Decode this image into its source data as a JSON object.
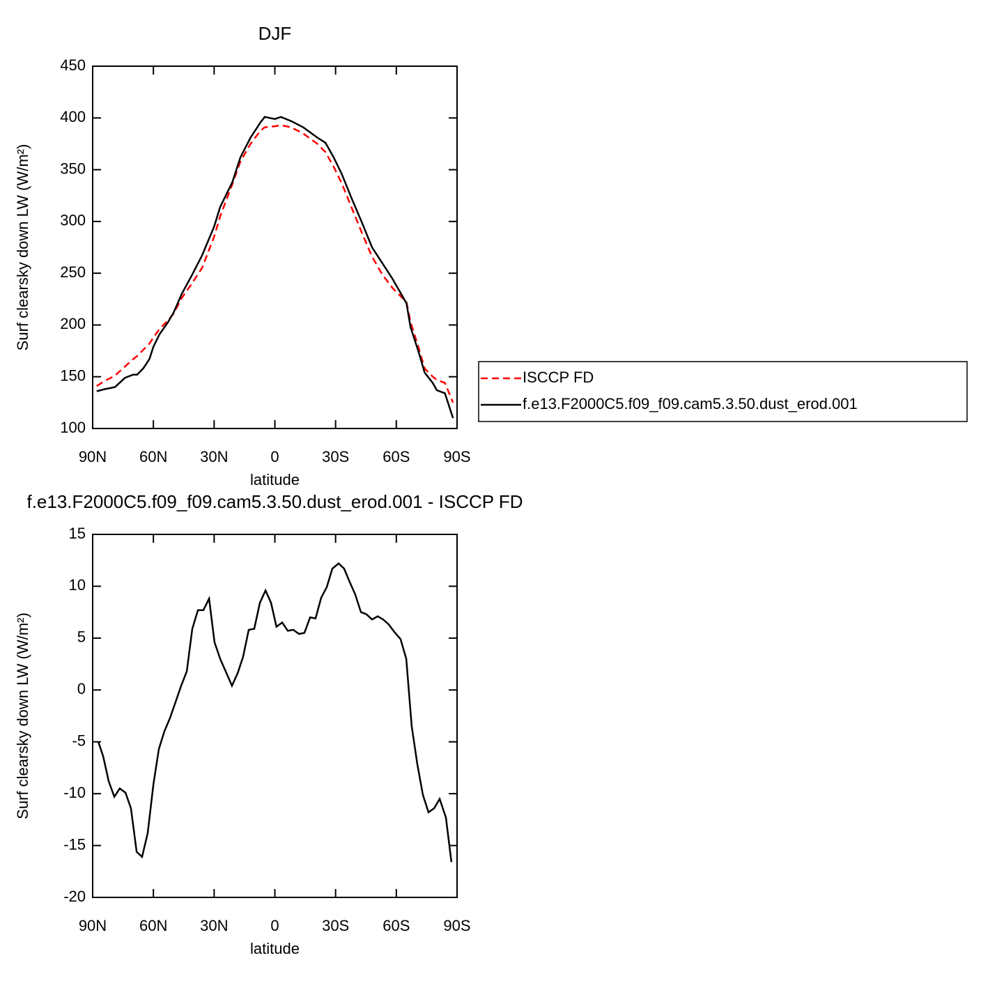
{
  "chart_data": [
    {
      "type": "line",
      "title": "DJF",
      "x_label": "latitude",
      "y_label": "Surf clearsky down LW (W/m²)",
      "x": [
        88,
        84,
        79,
        74,
        70,
        68,
        65,
        62,
        60,
        57,
        53,
        50,
        46,
        41,
        36,
        30,
        27,
        21,
        17,
        12,
        7,
        5,
        0,
        -3,
        -8,
        -14,
        -21,
        -25,
        -29,
        -33,
        -38,
        -43,
        -48,
        -53,
        -58,
        -65,
        -67,
        -71,
        -74,
        -78,
        -80,
        -84,
        -88
      ],
      "series": [
        {
          "name": "ISCCP FD",
          "color": "#ff0000",
          "dashed": true,
          "values": [
            141,
            146,
            151,
            160,
            167,
            170,
            176,
            182,
            188,
            196,
            204,
            211,
            226,
            240,
            255,
            285,
            305,
            336,
            358,
            375,
            388,
            391,
            392,
            393,
            391,
            385,
            375,
            367,
            353,
            337,
            313,
            289,
            266,
            249,
            236,
            222,
            203,
            178,
            158,
            150,
            147,
            144,
            125
          ]
        },
        {
          "name": "f.e13.F2000C5.f09_f09.cam5.3.50.dust_erod.001",
          "color": "#000000",
          "dashed": false,
          "values": [
            136,
            138,
            140,
            149,
            152,
            152,
            158,
            167,
            179,
            191,
            202,
            212,
            230,
            248,
            267,
            295,
            314,
            338,
            362,
            381,
            396,
            401,
            399,
            401,
            397,
            391,
            381,
            376,
            362,
            346,
            322,
            299,
            275,
            260,
            245,
            221,
            198,
            174,
            154,
            144,
            137,
            134,
            110
          ]
        }
      ],
      "xlim": [
        90,
        -90
      ],
      "xticks": [
        {
          "value": 90,
          "label": "90N"
        },
        {
          "value": 60,
          "label": "60N"
        },
        {
          "value": 30,
          "label": "30N"
        },
        0,
        {
          "value": -30,
          "label": "30S"
        },
        {
          "value": -60,
          "label": "60S"
        },
        {
          "value": -90,
          "label": "90S"
        }
      ],
      "ylim": [
        100,
        450
      ],
      "yticks": [
        100,
        150,
        200,
        250,
        300,
        350,
        400,
        450
      ],
      "legend": "right"
    },
    {
      "type": "line",
      "title": "f.e13.F2000C5.f09_f09.cam5.3.50.dust_erod.001 - ISCCP FD",
      "x_label": "latitude",
      "y_label": "Surf clearsky down LW (W/m²)",
      "x": [
        87.2,
        84.8,
        82.1,
        79.3,
        76.6,
        73.8,
        71.1,
        68.3,
        65.6,
        62.8,
        60,
        57.3,
        54.6,
        51.8,
        49.1,
        46.3,
        43.5,
        40.8,
        38,
        35.3,
        32.5,
        29.8,
        27,
        24.3,
        21.2,
        18.4,
        15.7,
        12.9,
        10.2,
        7.4,
        4.6,
        1.9,
        -0.8,
        -3.6,
        -6.4,
        -9.1,
        -11.9,
        -14.6,
        -17.4,
        -20.1,
        -22.9,
        -25.6,
        -28.4,
        -31.5,
        -34.2,
        -37,
        -39.7,
        -42.5,
        -45.2,
        -48,
        -50.8,
        -53.5,
        -56.3,
        -59,
        -62.1,
        -64.9,
        -67.6,
        -70.4,
        -73.1,
        -75.9,
        -78.7,
        -81.4,
        -84.5,
        -87.2
      ],
      "values": [
        -5.0,
        -6.4,
        -8.8,
        -10.3,
        -9.5,
        -9.9,
        -11.4,
        -15.6,
        -16.1,
        -13.8,
        -9.1,
        -5.7,
        -4.0,
        -2.7,
        -1.2,
        0.4,
        1.8,
        5.9,
        7.7,
        7.7,
        8.8,
        4.6,
        3.0,
        1.8,
        0.4,
        1.6,
        3.2,
        5.8,
        5.9,
        8.4,
        9.6,
        8.4,
        6.1,
        6.5,
        5.7,
        5.8,
        5.4,
        5.5,
        7.0,
        6.9,
        8.9,
        9.9,
        11.7,
        12.2,
        11.7,
        10.4,
        9.2,
        7.5,
        7.3,
        6.8,
        7.1,
        6.8,
        6.3,
        5.6,
        4.9,
        3.0,
        -3.5,
        -7.2,
        -10.1,
        -11.8,
        -11.4,
        -10.5,
        -12.3,
        -16.6
      ],
      "color": "#000000",
      "xlim": [
        90,
        -90
      ],
      "xticks": [
        {
          "value": 90,
          "label": "90N"
        },
        {
          "value": 60,
          "label": "60N"
        },
        {
          "value": 30,
          "label": "30N"
        },
        0,
        {
          "value": -30,
          "label": "30S"
        },
        {
          "value": -60,
          "label": "60S"
        },
        {
          "value": -90,
          "label": "90S"
        }
      ],
      "ylim": [
        -20,
        15
      ],
      "yticks": [
        -20,
        -15,
        -10,
        -5,
        0,
        5,
        10,
        15
      ]
    }
  ]
}
